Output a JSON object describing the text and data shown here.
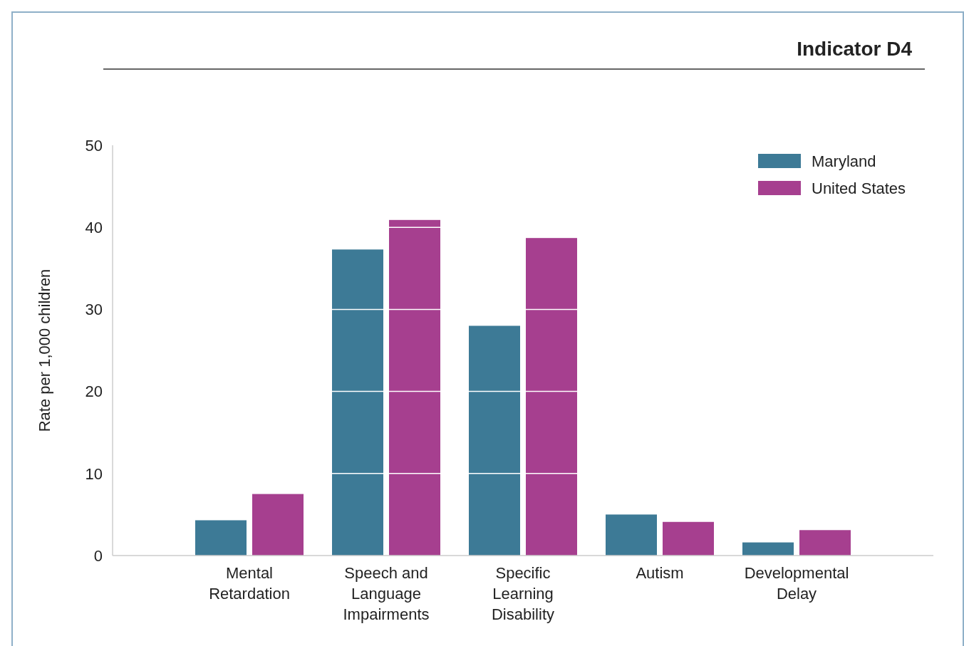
{
  "chart_data": {
    "type": "bar",
    "title": "Indicator D4",
    "ylabel": "Rate per 1,000 children",
    "categories": [
      "Mental Retardation",
      "Speech and Language Impairments",
      "Specific Learning Disability",
      "Autism",
      "Developmental Delay"
    ],
    "series": [
      {
        "name": "Maryland",
        "color": "#3d7a96",
        "values": [
          4.3,
          37.3,
          28.0,
          5.0,
          1.6
        ]
      },
      {
        "name": "United States",
        "color": "#a63f8f",
        "values": [
          7.5,
          40.9,
          38.7,
          4.1,
          3.1
        ]
      }
    ],
    "ylim": [
      0,
      50
    ],
    "yticks": [
      0,
      10,
      20,
      30,
      40,
      50
    ],
    "grid": "y",
    "legend": "top right"
  }
}
